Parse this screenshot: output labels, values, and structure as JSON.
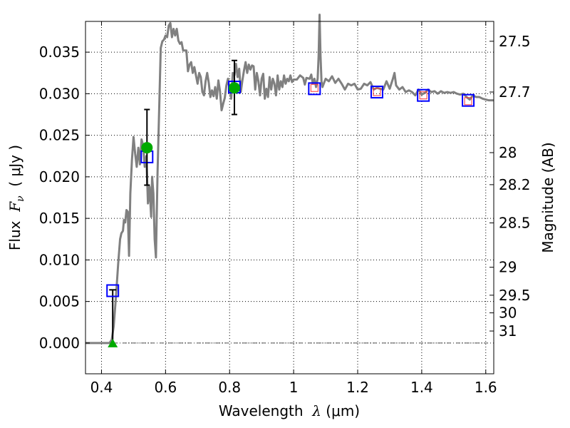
{
  "chart_data": {
    "type": "line",
    "xlabel_prefix": "Wavelength  ",
    "xlabel_symbol": "λ",
    "xlabel_units": " (μm)",
    "ylabel_prefix": "Flux  ",
    "ylabel_symbol": "F",
    "ylabel_subscript": "ν",
    "ylabel_units": "  ( μJy )",
    "y2label": "Magnitude (AB)",
    "xlim": [
      0.35,
      1.625
    ],
    "ylim": [
      -0.0037,
      0.0387
    ],
    "grid": true,
    "x_ticks": [
      {
        "value": 0.4,
        "label": "0.4"
      },
      {
        "value": 0.6,
        "label": "0.6"
      },
      {
        "value": 0.8,
        "label": "0.8"
      },
      {
        "value": 1.0,
        "label": "1"
      },
      {
        "value": 1.2,
        "label": "1.2"
      },
      {
        "value": 1.4,
        "label": "1.4"
      },
      {
        "value": 1.6,
        "label": "1.6"
      }
    ],
    "y_ticks": [
      {
        "value": 0.0,
        "label": "0.000"
      },
      {
        "value": 0.005,
        "label": "0.005"
      },
      {
        "value": 0.01,
        "label": "0.010"
      },
      {
        "value": 0.015,
        "label": "0.015"
      },
      {
        "value": 0.02,
        "label": "0.020"
      },
      {
        "value": 0.025,
        "label": "0.025"
      },
      {
        "value": 0.03,
        "label": "0.030"
      },
      {
        "value": 0.035,
        "label": "0.035"
      }
    ],
    "y2_ticks": [
      {
        "mag": 27.5,
        "label": "27.5"
      },
      {
        "mag": 27.7,
        "label": "27.7"
      },
      {
        "mag": 28.0,
        "label": "28"
      },
      {
        "mag": 28.2,
        "label": "28.2"
      },
      {
        "mag": 28.5,
        "label": "28.5"
      },
      {
        "mag": 29.0,
        "label": "29"
      },
      {
        "mag": 29.5,
        "label": "29.5"
      },
      {
        "mag": 30.0,
        "label": "30"
      },
      {
        "mag": 31.0,
        "label": "31"
      }
    ],
    "zero_line": {
      "y": 0.0
    },
    "series": [
      {
        "kind": "line",
        "color": "#808080",
        "points": [
          [
            0.35,
            0.0
          ],
          [
            0.425,
            0.0
          ],
          [
            0.432,
            0.0004
          ],
          [
            0.438,
            0.002
          ],
          [
            0.445,
            0.0055
          ],
          [
            0.452,
            0.0095
          ],
          [
            0.458,
            0.0125
          ],
          [
            0.462,
            0.0132
          ],
          [
            0.467,
            0.0135
          ],
          [
            0.47,
            0.0148
          ],
          [
            0.474,
            0.0145
          ],
          [
            0.478,
            0.016
          ],
          [
            0.482,
            0.0158
          ],
          [
            0.486,
            0.0105
          ],
          [
            0.49,
            0.018
          ],
          [
            0.495,
            0.022
          ],
          [
            0.5,
            0.0248
          ],
          [
            0.505,
            0.0228
          ],
          [
            0.51,
            0.0212
          ],
          [
            0.515,
            0.0235
          ],
          [
            0.52,
            0.0215
          ],
          [
            0.525,
            0.0245
          ],
          [
            0.53,
            0.0238
          ],
          [
            0.535,
            0.0212
          ],
          [
            0.54,
            0.0225
          ],
          [
            0.545,
            0.0168
          ],
          [
            0.55,
            0.0188
          ],
          [
            0.555,
            0.0152
          ],
          [
            0.558,
            0.02
          ],
          [
            0.562,
            0.018
          ],
          [
            0.566,
            0.0125
          ],
          [
            0.57,
            0.0103
          ],
          [
            0.575,
            0.0205
          ],
          [
            0.58,
            0.028
          ],
          [
            0.585,
            0.0355
          ],
          [
            0.59,
            0.0363
          ],
          [
            0.595,
            0.0365
          ],
          [
            0.6,
            0.037
          ],
          [
            0.605,
            0.0368
          ],
          [
            0.61,
            0.0382
          ],
          [
            0.615,
            0.0385
          ],
          [
            0.62,
            0.0368
          ],
          [
            0.625,
            0.0378
          ],
          [
            0.63,
            0.037
          ],
          [
            0.635,
            0.0378
          ],
          [
            0.64,
            0.0364
          ],
          [
            0.645,
            0.036
          ],
          [
            0.65,
            0.0362
          ],
          [
            0.655,
            0.0352
          ],
          [
            0.66,
            0.0352
          ],
          [
            0.665,
            0.0352
          ],
          [
            0.67,
            0.0327
          ],
          [
            0.675,
            0.0335
          ],
          [
            0.68,
            0.0338
          ],
          [
            0.685,
            0.0325
          ],
          [
            0.69,
            0.0332
          ],
          [
            0.695,
            0.0322
          ],
          [
            0.7,
            0.0312
          ],
          [
            0.705,
            0.0325
          ],
          [
            0.71,
            0.032
          ],
          [
            0.715,
            0.0302
          ],
          [
            0.72,
            0.0298
          ],
          [
            0.725,
            0.0315
          ],
          [
            0.73,
            0.0325
          ],
          [
            0.735,
            0.0313
          ],
          [
            0.74,
            0.0296
          ],
          [
            0.745,
            0.0304
          ],
          [
            0.75,
            0.0297
          ],
          [
            0.755,
            0.0308
          ],
          [
            0.76,
            0.0294
          ],
          [
            0.765,
            0.0316
          ],
          [
            0.77,
            0.0303
          ],
          [
            0.775,
            0.028
          ],
          [
            0.78,
            0.0288
          ],
          [
            0.785,
            0.0295
          ],
          [
            0.79,
            0.031
          ],
          [
            0.795,
            0.0318
          ],
          [
            0.8,
            0.0305
          ],
          [
            0.805,
            0.0294
          ],
          [
            0.81,
            0.0325
          ],
          [
            0.815,
            0.0322
          ],
          [
            0.82,
            0.0336
          ],
          [
            0.825,
            0.032
          ],
          [
            0.83,
            0.033
          ],
          [
            0.835,
            0.0302
          ],
          [
            0.84,
            0.0316
          ],
          [
            0.845,
            0.0328
          ],
          [
            0.85,
            0.0338
          ],
          [
            0.855,
            0.0325
          ],
          [
            0.86,
            0.0335
          ],
          [
            0.865,
            0.0329
          ],
          [
            0.87,
            0.0334
          ],
          [
            0.875,
            0.0333
          ],
          [
            0.88,
            0.0305
          ],
          [
            0.885,
            0.0325
          ],
          [
            0.89,
            0.0315
          ],
          [
            0.895,
            0.0298
          ],
          [
            0.9,
            0.0318
          ],
          [
            0.905,
            0.0324
          ],
          [
            0.91,
            0.0294
          ],
          [
            0.915,
            0.0306
          ],
          [
            0.92,
            0.0296
          ],
          [
            0.925,
            0.032
          ],
          [
            0.93,
            0.0305
          ],
          [
            0.935,
            0.0318
          ],
          [
            0.94,
            0.0312
          ],
          [
            0.945,
            0.0298
          ],
          [
            0.95,
            0.0322
          ],
          [
            0.955,
            0.0305
          ],
          [
            0.96,
            0.0315
          ],
          [
            0.965,
            0.0308
          ],
          [
            0.97,
            0.0322
          ],
          [
            0.975,
            0.0312
          ],
          [
            0.98,
            0.0318
          ],
          [
            0.985,
            0.0315
          ],
          [
            0.99,
            0.0322
          ],
          [
            0.995,
            0.0314
          ],
          [
            1.0,
            0.0317
          ],
          [
            1.01,
            0.0317
          ],
          [
            1.02,
            0.0322
          ],
          [
            1.03,
            0.0319
          ],
          [
            1.035,
            0.0311
          ],
          [
            1.04,
            0.0319
          ],
          [
            1.05,
            0.0318
          ],
          [
            1.055,
            0.0323
          ],
          [
            1.06,
            0.0312
          ],
          [
            1.065,
            0.0318
          ],
          [
            1.07,
            0.0308
          ],
          [
            1.075,
            0.0318
          ],
          [
            1.078,
            0.0345
          ],
          [
            1.081,
            0.0395
          ],
          [
            1.084,
            0.0345
          ],
          [
            1.087,
            0.0315
          ],
          [
            1.09,
            0.0308
          ],
          [
            1.1,
            0.0318
          ],
          [
            1.11,
            0.0315
          ],
          [
            1.12,
            0.0321
          ],
          [
            1.13,
            0.0313
          ],
          [
            1.14,
            0.0318
          ],
          [
            1.15,
            0.0312
          ],
          [
            1.16,
            0.0305
          ],
          [
            1.17,
            0.0312
          ],
          [
            1.18,
            0.031
          ],
          [
            1.19,
            0.0312
          ],
          [
            1.2,
            0.0305
          ],
          [
            1.21,
            0.0306
          ],
          [
            1.22,
            0.0312
          ],
          [
            1.23,
            0.031
          ],
          [
            1.24,
            0.0314
          ],
          [
            1.25,
            0.0305
          ],
          [
            1.26,
            0.0307
          ],
          [
            1.27,
            0.0306
          ],
          [
            1.28,
            0.0305
          ],
          [
            1.29,
            0.0315
          ],
          [
            1.3,
            0.0306
          ],
          [
            1.31,
            0.0318
          ],
          [
            1.315,
            0.0325
          ],
          [
            1.32,
            0.031
          ],
          [
            1.33,
            0.0305
          ],
          [
            1.34,
            0.0308
          ],
          [
            1.35,
            0.0302
          ],
          [
            1.36,
            0.0304
          ],
          [
            1.37,
            0.0302
          ],
          [
            1.38,
            0.0298
          ],
          [
            1.39,
            0.0305
          ],
          [
            1.4,
            0.0299
          ],
          [
            1.41,
            0.0301
          ],
          [
            1.42,
            0.0305
          ],
          [
            1.43,
            0.0302
          ],
          [
            1.44,
            0.0303
          ],
          [
            1.45,
            0.03
          ],
          [
            1.46,
            0.0303
          ],
          [
            1.47,
            0.0301
          ],
          [
            1.48,
            0.0302
          ],
          [
            1.49,
            0.0301
          ],
          [
            1.5,
            0.0302
          ],
          [
            1.51,
            0.03
          ],
          [
            1.52,
            0.0299
          ],
          [
            1.53,
            0.03
          ],
          [
            1.54,
            0.0296
          ],
          [
            1.55,
            0.0293
          ],
          [
            1.56,
            0.0298
          ],
          [
            1.57,
            0.0296
          ],
          [
            1.58,
            0.0296
          ],
          [
            1.59,
            0.0294
          ],
          [
            1.6,
            0.0293
          ],
          [
            1.61,
            0.0292
          ],
          [
            1.625,
            0.0292
          ]
        ]
      },
      {
        "kind": "square",
        "color": "#0000ff",
        "points": [
          [
            0.435,
            0.0063
          ],
          [
            0.542,
            0.0224
          ],
          [
            0.815,
            0.0308
          ],
          [
            1.065,
            0.0306
          ],
          [
            1.26,
            0.0302
          ],
          [
            1.405,
            0.0298
          ],
          [
            1.545,
            0.0292
          ]
        ]
      },
      {
        "kind": "square-small",
        "color": "#ff3333",
        "points": [
          [
            1.065,
            0.0307
          ],
          [
            1.26,
            0.0302
          ],
          [
            1.405,
            0.0298
          ],
          [
            1.545,
            0.0291
          ]
        ]
      },
      {
        "kind": "circle-errorbar",
        "color": "#00aa00",
        "errorbar_color": "#000000",
        "points": [
          {
            "x": 0.542,
            "y": 0.0235,
            "yerr_low": 0.019,
            "yerr_high": 0.0281
          },
          {
            "x": 0.815,
            "y": 0.0307,
            "yerr_low": 0.0275,
            "yerr_high": 0.034
          }
        ]
      },
      {
        "kind": "triangle-upper-limit",
        "color": "#00aa00",
        "errorbar_color": "#000000",
        "points": [
          {
            "x": 0.435,
            "y": 0.0,
            "y_high": 0.0064
          }
        ]
      }
    ]
  }
}
